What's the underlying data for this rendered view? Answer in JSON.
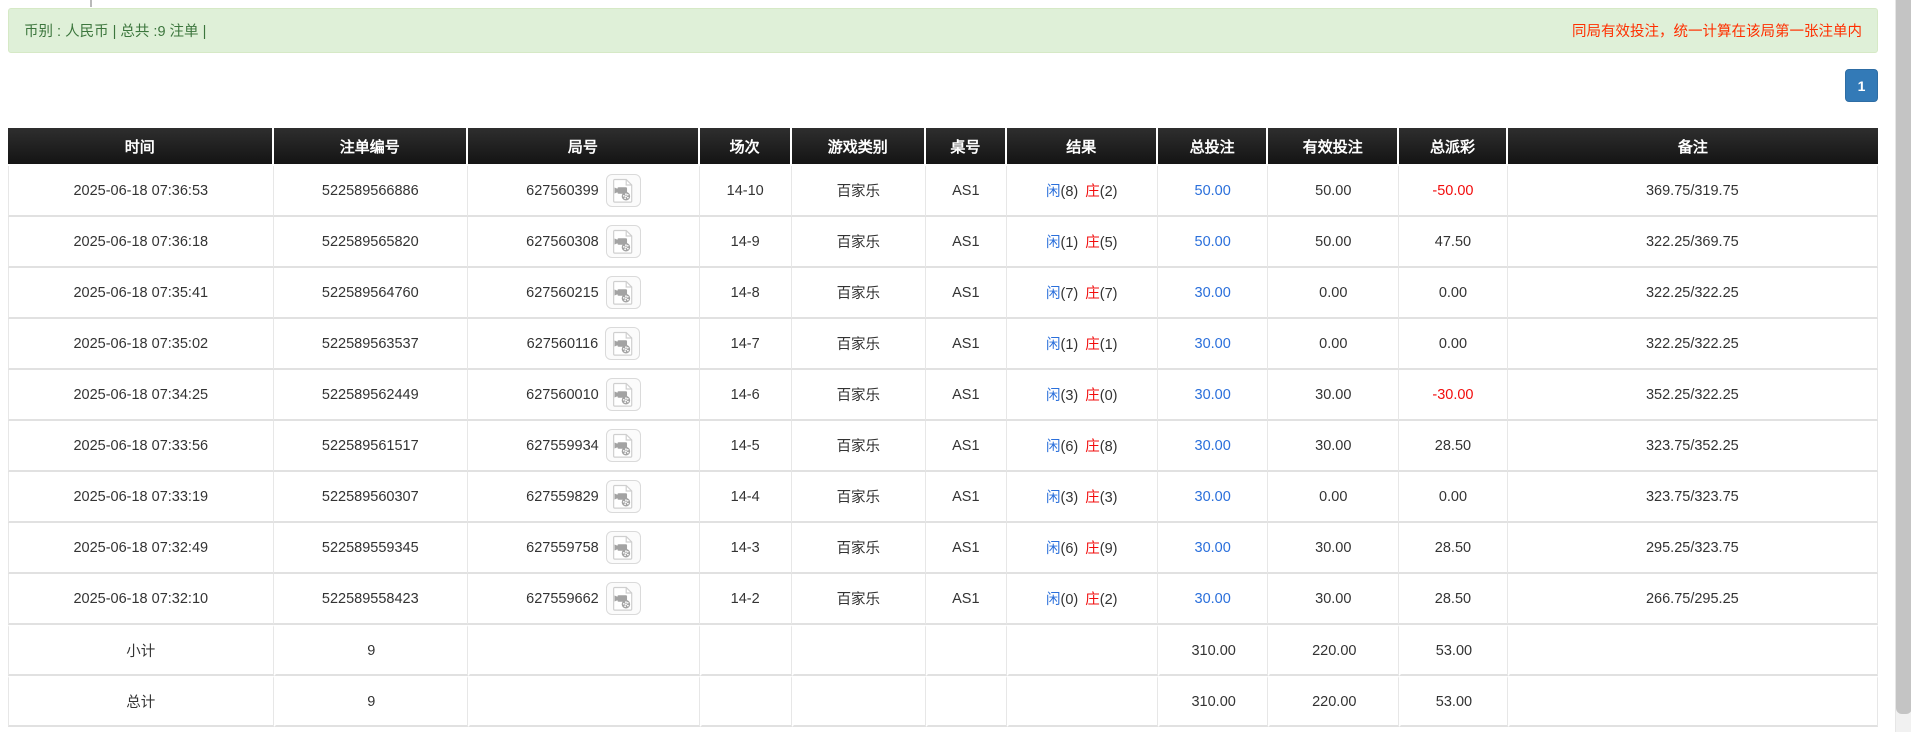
{
  "meta_bar": {
    "left_text": "币别 : 人民币 | 总共 :9 注单 |",
    "right_text": "同局有效投注，统一计算在该局第一张注单内"
  },
  "pagination": {
    "current_page": "1"
  },
  "icons": {
    "round_icon": "video-file-icon"
  },
  "colors": {
    "alert_bg": "#dff0d8",
    "alert_border": "#d6e9c6",
    "alert_text_green": "#3c763d",
    "notice_red": "#ff2f00",
    "header_bg": "#1d1d1d",
    "link_blue": "#2a6fdb",
    "banker_red": "#f20d0d",
    "negative_red": "#f20d0d",
    "summary_bg": "#999999",
    "pagination_blue": "#337ab7"
  },
  "table": {
    "headers": [
      "时间",
      "注单编号",
      "局号",
      "场次",
      "游戏类别",
      "桌号",
      "结果",
      "总投注",
      "有效投注",
      "总派彩",
      "备注"
    ],
    "header_keys": [
      "time",
      "bet-id",
      "round-id",
      "session",
      "game-type",
      "table-no",
      "result",
      "total-bet",
      "valid-bet",
      "payout",
      "remark"
    ],
    "rows": [
      {
        "time": "2025-06-18 07:36:53",
        "bet_id": "522589566886",
        "round_id": "627560399",
        "session": "14-10",
        "game_type": "百家乐",
        "table_no": "AS1",
        "result": {
          "player_label": "闲",
          "player_points": "(8)",
          "banker_label": "庄",
          "banker_points": "(2)"
        },
        "total_bet": "50.00",
        "valid_bet": "50.00",
        "payout": "-50.00",
        "remark": "369.75/319.75"
      },
      {
        "time": "2025-06-18 07:36:18",
        "bet_id": "522589565820",
        "round_id": "627560308",
        "session": "14-9",
        "game_type": "百家乐",
        "table_no": "AS1",
        "result": {
          "player_label": "闲",
          "player_points": "(1)",
          "banker_label": "庄",
          "banker_points": "(5)"
        },
        "total_bet": "50.00",
        "valid_bet": "50.00",
        "payout": "47.50",
        "remark": "322.25/369.75"
      },
      {
        "time": "2025-06-18 07:35:41",
        "bet_id": "522589564760",
        "round_id": "627560215",
        "session": "14-8",
        "game_type": "百家乐",
        "table_no": "AS1",
        "result": {
          "player_label": "闲",
          "player_points": "(7)",
          "banker_label": "庄",
          "banker_points": "(7)"
        },
        "total_bet": "30.00",
        "valid_bet": "0.00",
        "payout": "0.00",
        "remark": "322.25/322.25"
      },
      {
        "time": "2025-06-18 07:35:02",
        "bet_id": "522589563537",
        "round_id": "627560116",
        "session": "14-7",
        "game_type": "百家乐",
        "table_no": "AS1",
        "result": {
          "player_label": "闲",
          "player_points": "(1)",
          "banker_label": "庄",
          "banker_points": "(1)"
        },
        "total_bet": "30.00",
        "valid_bet": "0.00",
        "payout": "0.00",
        "remark": "322.25/322.25"
      },
      {
        "time": "2025-06-18 07:34:25",
        "bet_id": "522589562449",
        "round_id": "627560010",
        "session": "14-6",
        "game_type": "百家乐",
        "table_no": "AS1",
        "result": {
          "player_label": "闲",
          "player_points": "(3)",
          "banker_label": "庄",
          "banker_points": "(0)"
        },
        "total_bet": "30.00",
        "valid_bet": "30.00",
        "payout": "-30.00",
        "remark": "352.25/322.25"
      },
      {
        "time": "2025-06-18 07:33:56",
        "bet_id": "522589561517",
        "round_id": "627559934",
        "session": "14-5",
        "game_type": "百家乐",
        "table_no": "AS1",
        "result": {
          "player_label": "闲",
          "player_points": "(6)",
          "banker_label": "庄",
          "banker_points": "(8)"
        },
        "total_bet": "30.00",
        "valid_bet": "30.00",
        "payout": "28.50",
        "remark": "323.75/352.25"
      },
      {
        "time": "2025-06-18 07:33:19",
        "bet_id": "522589560307",
        "round_id": "627559829",
        "session": "14-4",
        "game_type": "百家乐",
        "table_no": "AS1",
        "result": {
          "player_label": "闲",
          "player_points": "(3)",
          "banker_label": "庄",
          "banker_points": "(3)"
        },
        "total_bet": "30.00",
        "valid_bet": "0.00",
        "payout": "0.00",
        "remark": "323.75/323.75"
      },
      {
        "time": "2025-06-18 07:32:49",
        "bet_id": "522589559345",
        "round_id": "627559758",
        "session": "14-3",
        "game_type": "百家乐",
        "table_no": "AS1",
        "result": {
          "player_label": "闲",
          "player_points": "(6)",
          "banker_label": "庄",
          "banker_points": "(9)"
        },
        "total_bet": "30.00",
        "valid_bet": "30.00",
        "payout": "28.50",
        "remark": "295.25/323.75"
      },
      {
        "time": "2025-06-18 07:32:10",
        "bet_id": "522589558423",
        "round_id": "627559662",
        "session": "14-2",
        "game_type": "百家乐",
        "table_no": "AS1",
        "result": {
          "player_label": "闲",
          "player_points": "(0)",
          "banker_label": "庄",
          "banker_points": "(2)"
        },
        "total_bet": "30.00",
        "valid_bet": "30.00",
        "payout": "28.50",
        "remark": "266.75/295.25"
      }
    ],
    "subtotal": {
      "label": "小计",
      "count": "9",
      "total_bet": "310.00",
      "valid_bet": "220.00",
      "payout": "53.00"
    },
    "total": {
      "label": "总计",
      "count": "9",
      "total_bet": "310.00",
      "valid_bet": "220.00",
      "payout": "53.00"
    }
  }
}
